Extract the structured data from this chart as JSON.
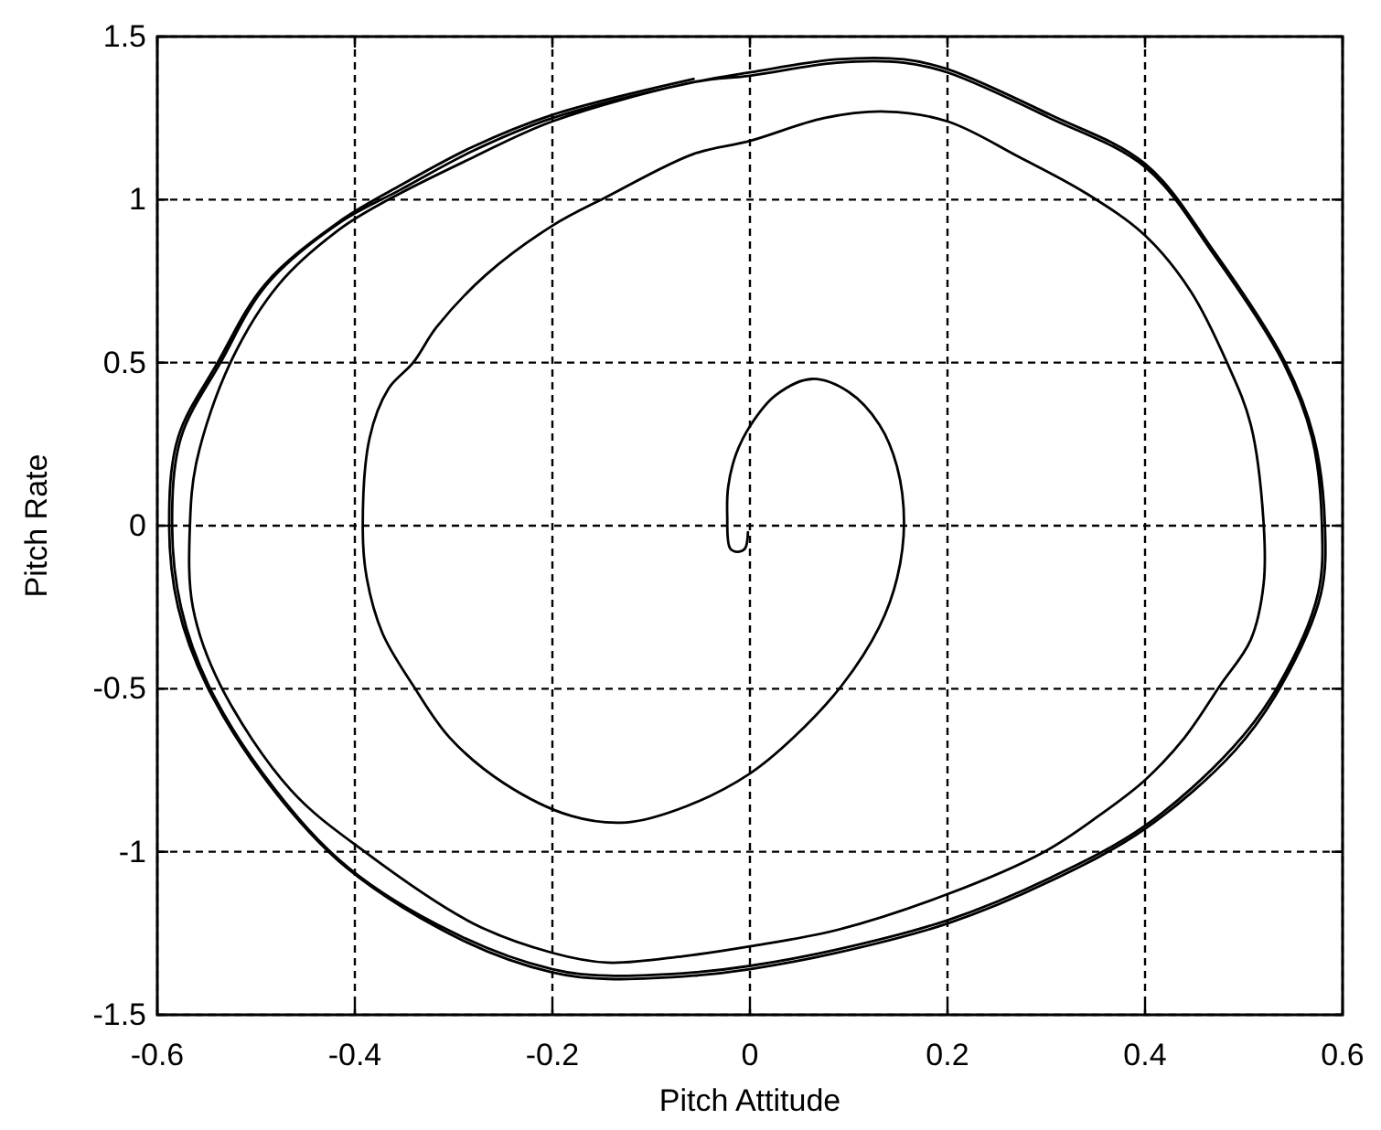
{
  "chart_data": {
    "type": "line",
    "xlabel": "Pitch Attitude",
    "ylabel": "Pitch Rate",
    "xlim": [
      -0.6,
      0.6
    ],
    "ylim": [
      -1.5,
      1.5
    ],
    "xticks": [
      -0.6,
      -0.4,
      -0.2,
      0,
      0.2,
      0.4,
      0.6
    ],
    "yticks": [
      -1.5,
      -1,
      -0.5,
      0,
      0.5,
      1,
      1.5
    ],
    "grid": true,
    "line_style": "solid",
    "series": [
      {
        "color": "#000000",
        "x": [
          -0.002,
          -0.005,
          -0.012,
          -0.02,
          -0.023,
          -0.022,
          -0.014,
          0.001,
          0.026,
          0.063,
          0.1,
          0.131,
          0.149,
          0.156,
          0.149,
          0.131,
          0.093,
          0.044,
          0.0,
          -0.064,
          -0.125,
          -0.181,
          -0.249,
          -0.304,
          -0.341,
          -0.372,
          -0.388,
          -0.392,
          -0.385,
          -0.366,
          -0.341,
          -0.317,
          -0.267,
          -0.2,
          -0.144,
          -0.057,
          0.0,
          0.075,
          0.137,
          0.2,
          0.273,
          0.34,
          0.4,
          0.446,
          0.483,
          0.507,
          0.52,
          0.52,
          0.507,
          0.476,
          0.44,
          0.4,
          0.353,
          0.298,
          0.2,
          0.088,
          0.0,
          -0.067,
          -0.144,
          -0.2,
          -0.28,
          -0.39,
          -0.465,
          -0.536,
          -0.564,
          -0.567,
          -0.56,
          -0.526,
          -0.477,
          -0.415,
          -0.366,
          -0.28,
          -0.2,
          -0.057,
          0.0,
          0.088,
          0.156,
          0.2,
          0.304,
          0.4,
          0.47,
          0.54,
          0.569,
          0.579,
          0.575,
          0.535,
          0.489,
          0.4,
          0.304,
          0.2,
          0.088,
          0.0,
          -0.057,
          -0.144,
          -0.2,
          -0.292,
          -0.406,
          -0.483,
          -0.548,
          -0.576,
          -0.585,
          -0.576,
          -0.536,
          -0.489,
          -0.415,
          -0.354,
          -0.28,
          -0.2,
          -0.057,
          0.0,
          0.088,
          0.156,
          0.2,
          0.304,
          0.4,
          0.47,
          0.542,
          0.571,
          0.582,
          0.578,
          0.538,
          0.491,
          0.4,
          0.304,
          0.2,
          0.088,
          0.0,
          -0.057,
          -0.144,
          -0.2,
          -0.292,
          -0.408,
          -0.485,
          -0.55,
          -0.579,
          -0.588,
          -0.579,
          -0.539,
          -0.491,
          -0.417,
          -0.356,
          -0.282,
          -0.2,
          -0.057
        ],
        "values": [
          -0.02,
          -0.07,
          -0.08,
          -0.07,
          0.03,
          0.12,
          0.22,
          0.31,
          0.4,
          0.45,
          0.41,
          0.31,
          0.18,
          0.01,
          -0.16,
          -0.31,
          -0.49,
          -0.65,
          -0.76,
          -0.86,
          -0.91,
          -0.89,
          -0.79,
          -0.65,
          -0.49,
          -0.33,
          -0.16,
          -0.01,
          0.27,
          0.42,
          0.5,
          0.61,
          0.77,
          0.92,
          1.01,
          1.14,
          1.18,
          1.25,
          1.27,
          1.24,
          1.13,
          1.02,
          0.89,
          0.72,
          0.5,
          0.31,
          0.01,
          -0.18,
          -0.35,
          -0.49,
          -0.65,
          -0.78,
          -0.89,
          -1.0,
          -1.13,
          -1.24,
          -1.29,
          -1.32,
          -1.34,
          -1.31,
          -1.22,
          -1.0,
          -0.81,
          -0.49,
          -0.25,
          0.0,
          0.2,
          0.5,
          0.74,
          0.91,
          1.0,
          1.13,
          1.24,
          1.36,
          1.38,
          1.42,
          1.42,
          1.39,
          1.25,
          1.1,
          0.83,
          0.5,
          0.27,
          0.01,
          -0.21,
          -0.49,
          -0.68,
          -0.92,
          -1.08,
          -1.21,
          -1.3,
          -1.35,
          -1.37,
          -1.38,
          -1.36,
          -1.26,
          -1.05,
          -0.8,
          -0.49,
          -0.25,
          0.0,
          0.27,
          0.5,
          0.74,
          0.93,
          1.03,
          1.15,
          1.25,
          1.36,
          1.39,
          1.43,
          1.43,
          1.4,
          1.26,
          1.11,
          0.84,
          0.5,
          0.27,
          0.01,
          -0.21,
          -0.49,
          -0.69,
          -0.93,
          -1.09,
          -1.22,
          -1.31,
          -1.36,
          -1.38,
          -1.39,
          -1.37,
          -1.27,
          -1.05,
          -0.8,
          -0.49,
          -0.25,
          0.0,
          0.27,
          0.5,
          0.74,
          0.93,
          1.04,
          1.16,
          1.26,
          1.37
        ]
      }
    ]
  }
}
